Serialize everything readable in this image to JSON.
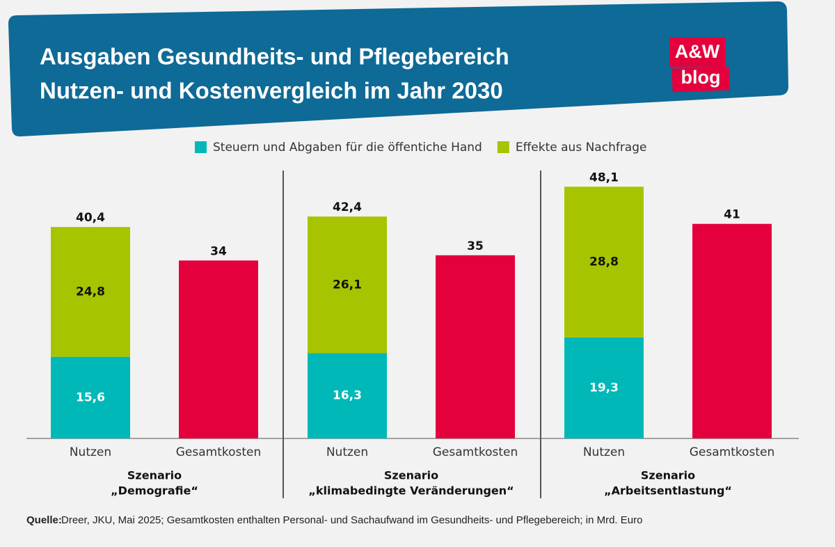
{
  "chart_data": {
    "type": "bar",
    "title": "Ausgaben Gesundheits- und Pflegebereich",
    "subtitle": "Nutzen- und Kostenvergleich im Jahr 2030",
    "logo": [
      "A&W",
      "blog"
    ],
    "categories": [
      "Nutzen",
      "Gesamtkosten",
      "Nutzen",
      "Gesamtkosten",
      "Nutzen",
      "Gesamtkosten"
    ],
    "groups": [
      [
        "Szenario",
        "„Demografie“"
      ],
      [
        "Szenario",
        "„klimabedingte Veränderungen“"
      ],
      [
        "Szenario",
        "„Arbeitsentlastung“"
      ]
    ],
    "series": [
      {
        "name": "Steuern und Abgaben für die öffentiche Hand",
        "color": "#00b8b8",
        "label_color": "#ffffff",
        "values": [
          15.6,
          null,
          16.3,
          null,
          19.3,
          null
        ],
        "value_labels": [
          "15,6",
          null,
          "16,3",
          null,
          "19,3",
          null
        ]
      },
      {
        "name": "Effekte aus Nachfrage",
        "color": "#a8c400",
        "label_color": "#111111",
        "values": [
          24.8,
          null,
          26.1,
          null,
          28.8,
          null
        ],
        "value_labels": [
          "24,8",
          null,
          "26,1",
          null,
          "28,8",
          null
        ]
      },
      {
        "color": "#e4003d",
        "label_color": "#111111",
        "values": [
          null,
          34,
          null,
          35,
          null,
          41
        ]
      }
    ],
    "totals": {
      "values": [
        40.4,
        null,
        42.4,
        null,
        48.1,
        null
      ],
      "value_labels": [
        "40,4",
        null,
        "42,4",
        null,
        "48,1",
        null
      ]
    },
    "ylim": [
      0,
      50
    ],
    "source_label": "Quelle:",
    "source": "Dreer, JKU, Mai 2025; Gesamtkosten enthalten Personal- und Sachaufwand im Gesundheits- und Pflegebereich; in Mrd. Euro"
  }
}
